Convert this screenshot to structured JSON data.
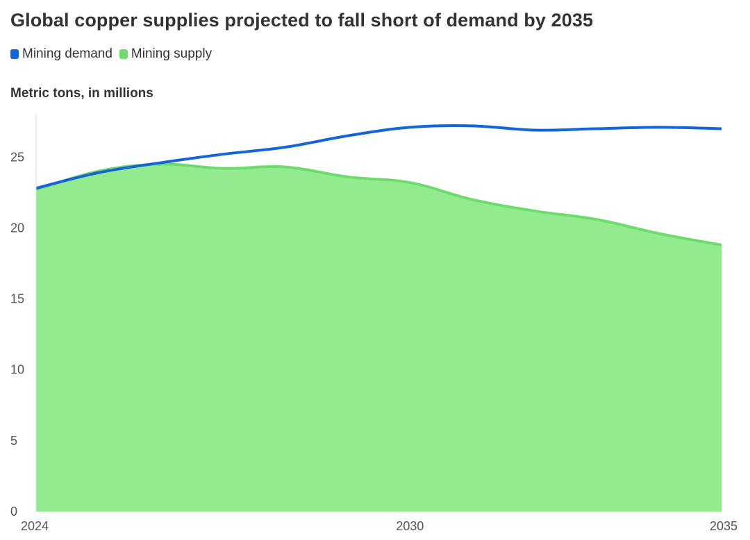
{
  "title": "Global copper supplies projected to fall short of demand by 2035",
  "legend": [
    {
      "label": "Mining demand",
      "color": "#1565d8"
    },
    {
      "label": "Mining supply",
      "color": "#6ddc6d"
    }
  ],
  "chart_data": {
    "type": "area",
    "title": "Global copper supplies projected to fall short of demand by 2035",
    "subtitle": "Metric tons, in millions",
    "xlabel": "",
    "ylabel": "Metric tons, in millions",
    "x": [
      2024,
      2025,
      2026,
      2027,
      2028,
      2029,
      2030,
      2031,
      2032,
      2033,
      2034,
      2035
    ],
    "x_ticks": [
      "2024",
      "2030",
      "2035"
    ],
    "y_ticks": [
      "0",
      "5",
      "10",
      "15",
      "20",
      "25"
    ],
    "xlim": [
      2024,
      2035
    ],
    "ylim": [
      0,
      28
    ],
    "grid": false,
    "legend_position": "top-left",
    "series": [
      {
        "name": "Mining demand",
        "kind": "line",
        "color": "#1565d8",
        "values": [
          22.8,
          23.9,
          24.6,
          25.2,
          25.7,
          26.5,
          27.1,
          27.2,
          26.9,
          27.0,
          27.1,
          27.0
        ]
      },
      {
        "name": "Mining supply",
        "kind": "area",
        "color": "#6ddc6d",
        "fill": "#93eb8f",
        "values": [
          22.7,
          24.0,
          24.5,
          24.2,
          24.3,
          23.6,
          23.2,
          22.0,
          21.2,
          20.6,
          19.6,
          18.8
        ]
      }
    ]
  }
}
